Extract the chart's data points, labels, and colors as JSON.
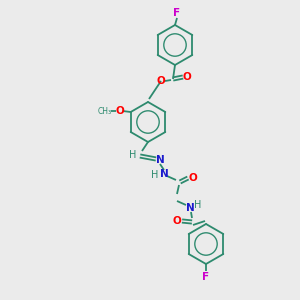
{
  "bg_color": "#ebebeb",
  "bond_color": "#2d8a6e",
  "atom_colors": {
    "O": "#ff0000",
    "N": "#1a1acc",
    "F": "#cc00cc",
    "H": "#2d8a6e",
    "C": "#2d8a6e"
  },
  "figsize": [
    3.0,
    3.0
  ],
  "dpi": 100
}
